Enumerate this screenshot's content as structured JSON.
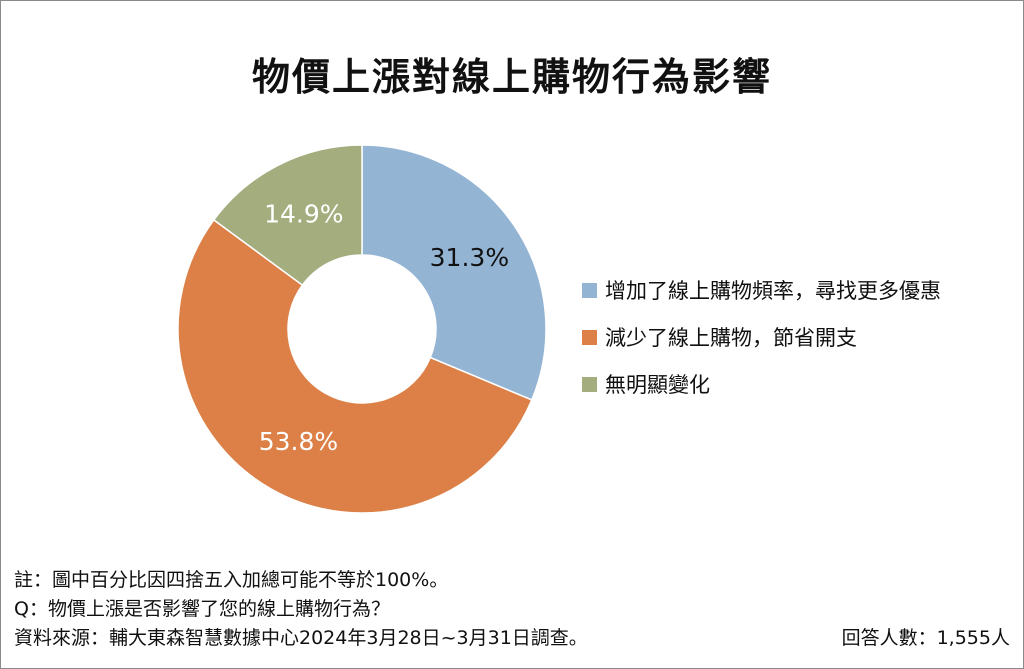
{
  "chart_data": {
    "type": "pie",
    "title": "物價上漲對線上購物行為影響",
    "categories": [
      "增加了線上購物頻率，尋找更多優惠",
      "減少了線上購物，節省開支",
      "無明顯變化"
    ],
    "values": [
      31.3,
      53.8,
      14.9
    ],
    "value_labels": [
      "31.3%",
      "53.8%",
      "14.9%"
    ],
    "colors": [
      "#94b4d3",
      "#dc8047",
      "#a3ad7e"
    ],
    "donut": true,
    "legend_position": "right"
  },
  "notes": {
    "rounding": "註：圖中百分比因四捨五入加總可能不等於100%。",
    "question": "Q：物價上漲是否影響了您的線上購物行為？",
    "source": "資料來源：輔大東森智慧數據中心2024年3月28日~3月31日調查。",
    "respondents": "回答人數：1,555人"
  }
}
